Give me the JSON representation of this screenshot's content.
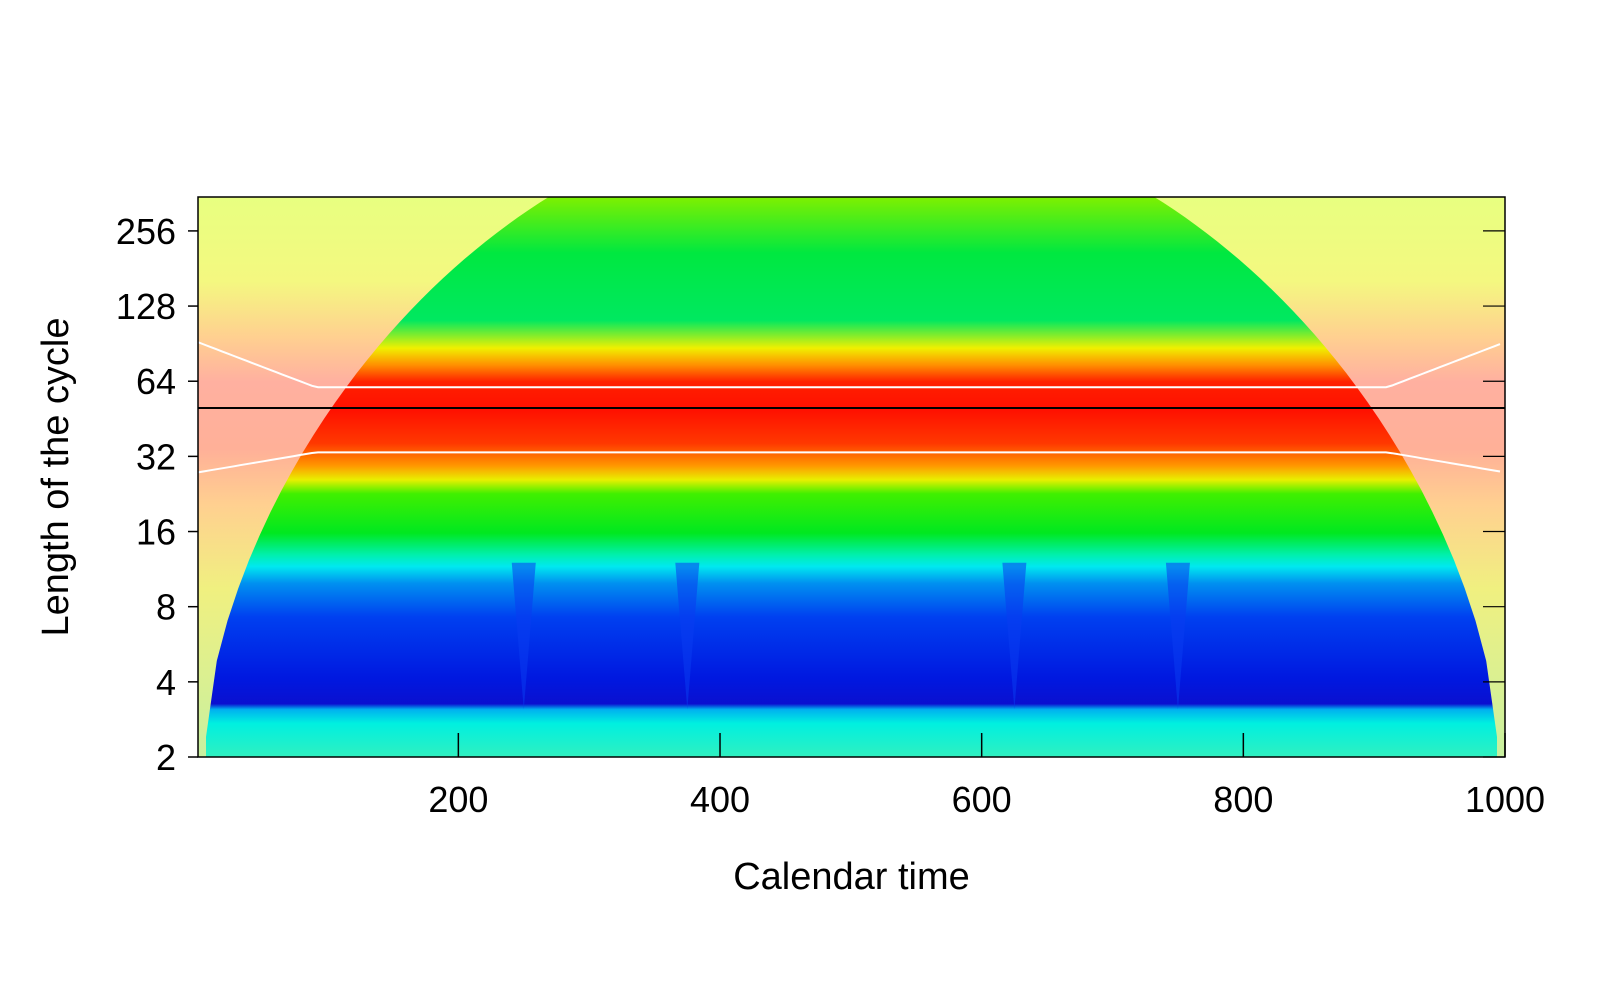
{
  "chart_data": {
    "type": "heatmap",
    "title": "",
    "xlabel": "Calendar time",
    "ylabel": "Length of the cycle",
    "xlim": [
      1,
      1000
    ],
    "ylim": [
      2,
      350
    ],
    "y_scale": "log2",
    "x_ticks": [
      200,
      400,
      600,
      800,
      1000
    ],
    "y_ticks": [
      2,
      4,
      8,
      16,
      32,
      64,
      128,
      256
    ],
    "grid": false,
    "legend": "none",
    "colormap": "rainbow (blue = low power, red = high power)",
    "dominant_period": 50,
    "significance_contour_period_range": [
      32,
      64
    ],
    "bands": [
      {
        "period_range": [
          2,
          3.2
        ],
        "power": "low",
        "color": "#12f0d8"
      },
      {
        "period_range": [
          3.2,
          10
        ],
        "power": "very low",
        "color": "#0a28e0"
      },
      {
        "period_range": [
          10,
          14
        ],
        "power": "low",
        "color": "#00f0f0"
      },
      {
        "period_range": [
          14,
          28
        ],
        "power": "moderate",
        "color": "#00e820"
      },
      {
        "period_range": [
          28,
          72
        ],
        "power": "high",
        "color": "#ff2000"
      },
      {
        "period_range": [
          72,
          350
        ],
        "power": "moderate",
        "color": "#00e840"
      }
    ],
    "vertical_streak_x": [
      250,
      375,
      625,
      750
    ],
    "cone_of_influence": "shaded lighter outside the cone near the left and right edges"
  }
}
